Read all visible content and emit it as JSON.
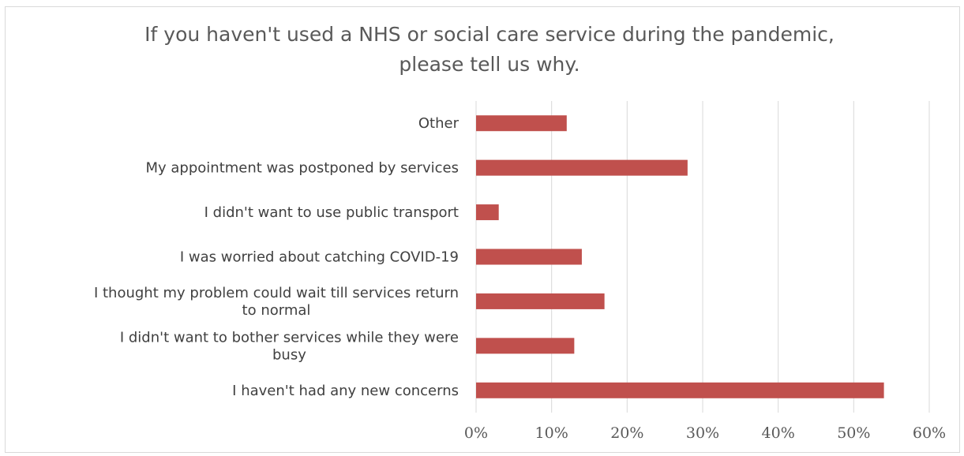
{
  "chart_data": {
    "type": "bar",
    "orientation": "horizontal",
    "title_lines": [
      "If you haven't used a NHS or social care service during the pandemic,",
      "please tell us why."
    ],
    "categories": [
      [
        "Other"
      ],
      [
        "My appointment was postponed by services"
      ],
      [
        "I didn't want to use public transport"
      ],
      [
        "I was worried about catching COVID-19"
      ],
      [
        "I thought my problem could wait till services return",
        "to normal"
      ],
      [
        "I didn't want to bother services while they were",
        "busy"
      ],
      [
        "I haven't had any new concerns"
      ]
    ],
    "values": [
      12,
      28,
      3,
      14,
      17,
      13,
      54
    ],
    "xlim": [
      0,
      60
    ],
    "x_ticks": [
      0,
      10,
      20,
      30,
      40,
      50,
      60
    ],
    "x_tick_labels": [
      "0%",
      "10%",
      "20%",
      "30%",
      "40%",
      "50%",
      "60%"
    ],
    "grid": "vertical",
    "bar_color": "#c0504d",
    "grid_color": "#d9d9d9"
  }
}
